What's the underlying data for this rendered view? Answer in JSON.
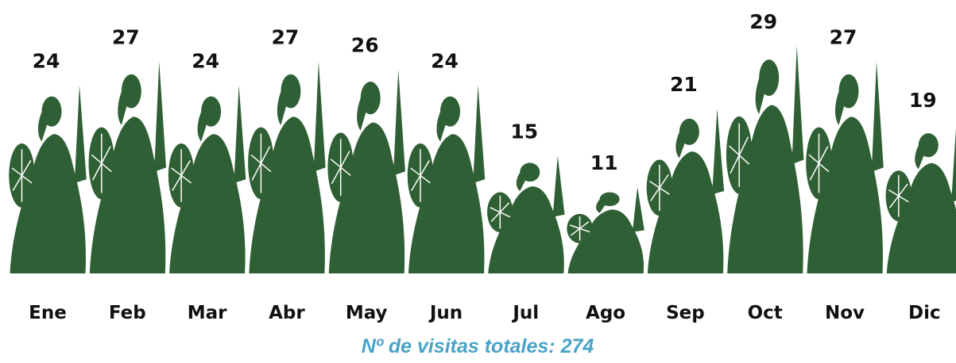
{
  "chart_data": {
    "type": "bar",
    "title": "Nº de visitas totales: 274",
    "categories": [
      "Ene",
      "Feb",
      "Mar",
      "Abr",
      "May",
      "Jun",
      "Jul",
      "Ago",
      "Sep",
      "Oct",
      "Nov",
      "Dic"
    ],
    "values": [
      24,
      27,
      24,
      27,
      26,
      24,
      15,
      11,
      21,
      29,
      27,
      19
    ],
    "color": "#2f5f34"
  }
}
